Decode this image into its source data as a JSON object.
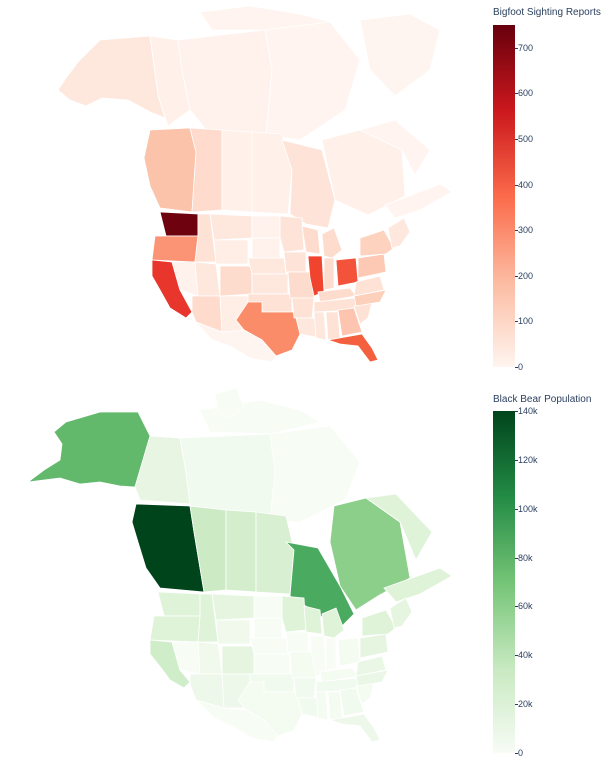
{
  "maps": [
    {
      "colorbar_title": "Bigfoot Sighting Reports",
      "colorscale": [
        "#fff5f0",
        "#fcbba1",
        "#fb6a4a",
        "#cb181d",
        "#67000d"
      ],
      "range": [
        0,
        750
      ],
      "ticks": [
        "0",
        "100",
        "200",
        "300",
        "400",
        "500",
        "600",
        "700"
      ],
      "tick_values": [
        0,
        100,
        200,
        300,
        400,
        500,
        600,
        700
      ]
    },
    {
      "colorbar_title": "Black Bear Population",
      "colorscale": [
        "#f7fcf5",
        "#c7e9c0",
        "#74c476",
        "#238b45",
        "#00441b"
      ],
      "range": [
        0,
        140000
      ],
      "ticks": [
        "0",
        "20k",
        "40k",
        "60k",
        "80k",
        "100k",
        "120k",
        "140k"
      ],
      "tick_values": [
        0,
        20000,
        40000,
        60000,
        80000,
        100000,
        120000,
        140000
      ]
    }
  ]
}
